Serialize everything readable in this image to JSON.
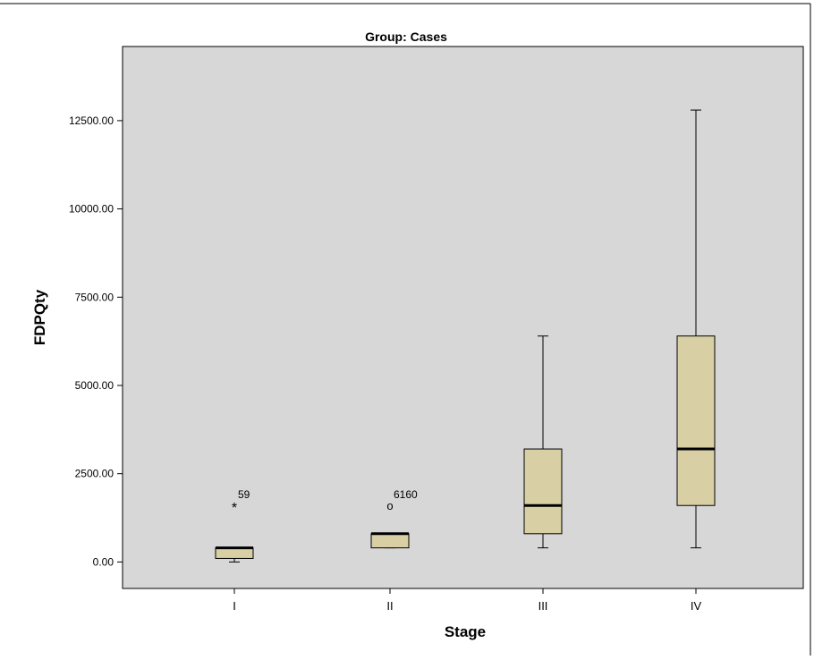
{
  "chart_data": {
    "type": "boxplot",
    "title": "Group: Cases",
    "xlabel": "Stage",
    "ylabel": "FDPQty",
    "ylim": [
      -750,
      14600
    ],
    "yticks": [
      0,
      2500,
      5000,
      7500,
      10000,
      12500
    ],
    "ytick_labels": [
      "0.00",
      "2500.00",
      "5000.00",
      "7500.00",
      "10000.00",
      "12500.00"
    ],
    "categories": [
      "I",
      "II",
      "III",
      "IV"
    ],
    "boxes": [
      {
        "category": "I",
        "whisker_low": 0,
        "q1": 100,
        "median": 400,
        "q3": 400,
        "whisker_high": 400
      },
      {
        "category": "II",
        "whisker_low": 400,
        "q1": 400,
        "median": 800,
        "q3": 800,
        "whisker_high": 800
      },
      {
        "category": "III",
        "whisker_low": 400,
        "q1": 800,
        "median": 1600,
        "q3": 3200,
        "whisker_high": 6400
      },
      {
        "category": "IV",
        "whisker_low": 400,
        "q1": 1600,
        "median": 3200,
        "q3": 6400,
        "whisker_high": 12800
      }
    ],
    "outliers": [
      {
        "category": "I",
        "value": 1600,
        "marker": "*",
        "label": "59"
      },
      {
        "category": "II",
        "value": 1600,
        "marker": "o",
        "label": "6160"
      }
    ],
    "colors": {
      "box_fill": "#d8d0a4",
      "plot_background": "#d7d7d7",
      "page_background": "#ffffff"
    },
    "grid": false
  }
}
